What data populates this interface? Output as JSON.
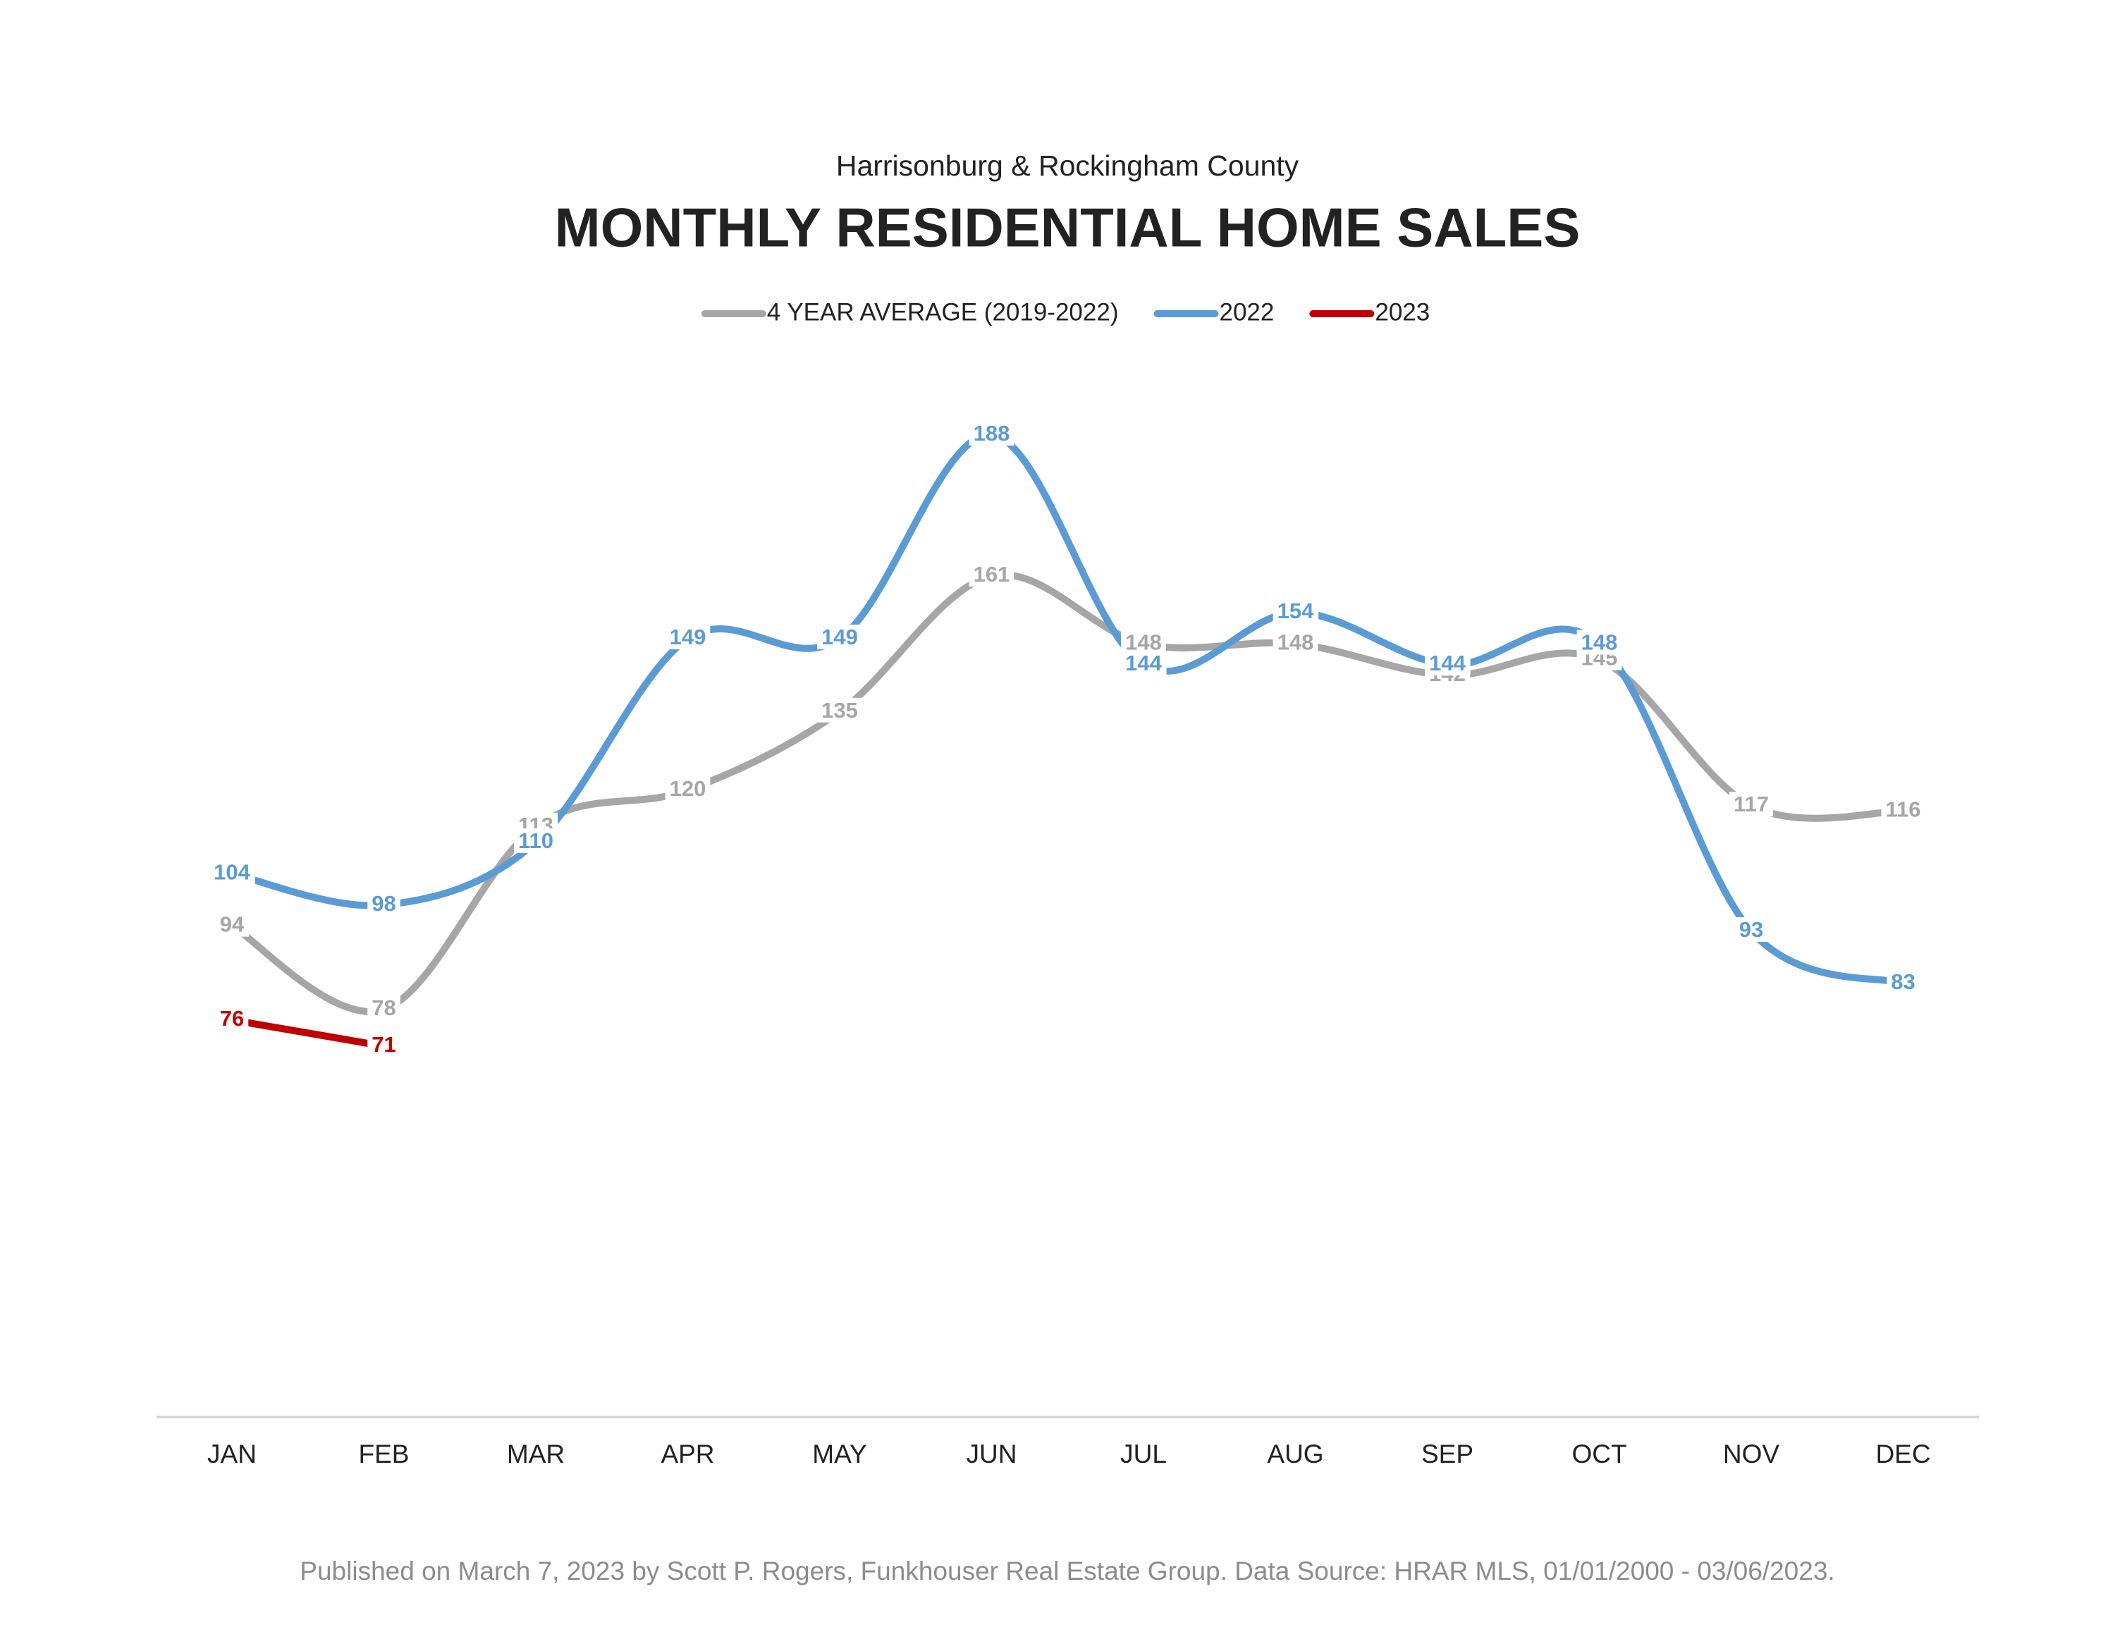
{
  "chart_data": {
    "type": "line",
    "subtitle": "Harrisonburg & Rockingham County",
    "title": "MONTHLY RESIDENTIAL HOME SALES",
    "categories": [
      "JAN",
      "FEB",
      "MAR",
      "APR",
      "MAY",
      "JUN",
      "JUL",
      "AUG",
      "SEP",
      "OCT",
      "NOV",
      "DEC"
    ],
    "series": [
      {
        "name": "4 YEAR AVERAGE (2019-2022)",
        "color": "#a6a6a6",
        "values": [
          94,
          78,
          113,
          120,
          135,
          161,
          148,
          148,
          142,
          145,
          117,
          116
        ]
      },
      {
        "name": "2022",
        "color": "#5b9bd5",
        "values": [
          104,
          98,
          110,
          149,
          149,
          188,
          144,
          154,
          144,
          148,
          93,
          83
        ]
      },
      {
        "name": "2023",
        "color": "#c00000",
        "values": [
          76,
          71,
          null,
          null,
          null,
          null,
          null,
          null,
          null,
          null,
          null,
          null
        ]
      }
    ],
    "ylim": [
      0,
      200
    ],
    "smooth": true,
    "legend": "top",
    "footer": "Published on March 7, 2023 by Scott P. Rogers, Funkhouser Real Estate Group. Data Source: HRAR MLS, 01/01/2000 - 03/06/2023."
  }
}
